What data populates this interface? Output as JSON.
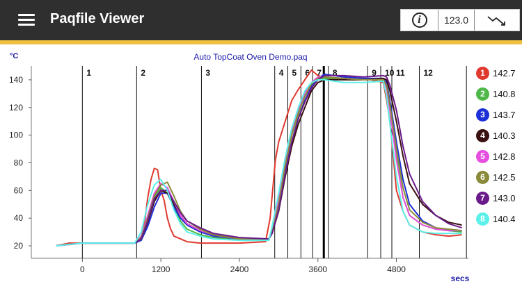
{
  "app": {
    "title": "Paqfile Viewer"
  },
  "toolbar": {
    "info_icon_glyph": "i",
    "value": "123.0"
  },
  "chart_data": {
    "type": "line",
    "title": "Auto TopCoat Oven Demo.paq",
    "ylabel": "°C",
    "xlabel": "secs",
    "xlim": [
      -780,
      5900
    ],
    "ylim": [
      15,
      150
    ],
    "yticks": [
      20,
      40,
      60,
      80,
      100,
      120,
      140
    ],
    "xticks": [
      0,
      1200,
      2400,
      3600,
      4800
    ],
    "zones": [
      {
        "label": "1",
        "x": 0
      },
      {
        "label": "2",
        "x": 830
      },
      {
        "label": "3",
        "x": 1820
      },
      {
        "label": "4",
        "x": 2940
      },
      {
        "label": "5",
        "x": 3140
      },
      {
        "label": "6",
        "x": 3340
      },
      {
        "label": "7",
        "x": 3520
      },
      {
        "label": "8",
        "x": 3760
      },
      {
        "label": "9",
        "x": 4360
      },
      {
        "label": "10",
        "x": 4560
      },
      {
        "label": "11",
        "x": 4730
      },
      {
        "label": "12",
        "x": 5150
      },
      {
        "label": "",
        "x": 5870
      }
    ],
    "marker_x": 3690,
    "series": [
      {
        "name": "1",
        "color": "#e03a2f",
        "current": "142.7",
        "x": [
          -400,
          -200,
          0,
          400,
          800,
          900,
          950,
          1000,
          1050,
          1100,
          1150,
          1200,
          1250,
          1300,
          1350,
          1400,
          1500,
          1600,
          1800,
          2000,
          2400,
          2800,
          2870,
          2950,
          3000,
          3100,
          3200,
          3300,
          3400,
          3500,
          3600,
          3700,
          3800,
          4000,
          4200,
          4400,
          4600,
          4650,
          4700,
          4800,
          4900,
          5000,
          5200,
          5400,
          5600,
          5800
        ],
        "values": [
          20,
          22,
          22,
          22,
          22,
          24,
          36,
          55,
          68,
          76,
          75,
          60,
          53,
          40,
          32,
          27,
          25,
          23,
          22,
          22,
          22,
          23,
          40,
          82,
          95,
          110,
          125,
          133,
          140,
          147,
          143,
          141,
          141,
          140,
          140,
          140,
          138,
          125,
          110,
          60,
          45,
          35,
          30,
          28,
          27,
          28
        ]
      },
      {
        "name": "2",
        "color": "#4db848",
        "current": "140.8",
        "x": [
          -400,
          0,
          800,
          900,
          1000,
          1100,
          1200,
          1300,
          1400,
          1500,
          1600,
          1800,
          2000,
          2400,
          2850,
          2900,
          3000,
          3100,
          3200,
          3300,
          3400,
          3500,
          3600,
          3700,
          4000,
          4300,
          4600,
          4650,
          4700,
          4800,
          4900,
          5000,
          5200,
          5400,
          5600,
          5800
        ],
        "values": [
          20,
          22,
          22,
          27,
          40,
          55,
          62,
          58,
          48,
          38,
          32,
          28,
          26,
          24,
          24,
          33,
          55,
          80,
          100,
          115,
          128,
          136,
          140,
          141,
          140,
          140,
          140,
          135,
          120,
          85,
          55,
          42,
          35,
          32,
          31,
          30
        ]
      },
      {
        "name": "3",
        "color": "#1d2fd6",
        "current": "143.7",
        "x": [
          -400,
          0,
          800,
          900,
          1000,
          1100,
          1200,
          1300,
          1400,
          1500,
          1600,
          1800,
          2000,
          2400,
          2850,
          2900,
          3000,
          3100,
          3200,
          3300,
          3400,
          3500,
          3600,
          3700,
          4000,
          4300,
          4600,
          4650,
          4700,
          4800,
          4900,
          5000,
          5200,
          5400,
          5600,
          5800
        ],
        "values": [
          20,
          22,
          22,
          24,
          34,
          48,
          58,
          58,
          48,
          40,
          35,
          30,
          27,
          25,
          25,
          30,
          50,
          75,
          95,
          112,
          125,
          135,
          141,
          144,
          142,
          141,
          141,
          138,
          125,
          95,
          68,
          50,
          38,
          33,
          31,
          31
        ]
      },
      {
        "name": "4",
        "color": "#3a1010",
        "current": "140.3",
        "x": [
          -400,
          0,
          800,
          900,
          1000,
          1100,
          1200,
          1300,
          1400,
          1500,
          1600,
          1800,
          2000,
          2400,
          2850,
          2900,
          3000,
          3100,
          3200,
          3300,
          3400,
          3500,
          3600,
          3700,
          4000,
          4300,
          4600,
          4650,
          4700,
          4800,
          4900,
          5000,
          5200,
          5400,
          5600,
          5800
        ],
        "values": [
          20,
          22,
          22,
          25,
          37,
          52,
          60,
          58,
          50,
          42,
          36,
          31,
          28,
          25,
          25,
          29,
          45,
          70,
          92,
          108,
          120,
          132,
          138,
          140,
          140,
          140,
          141,
          140,
          132,
          110,
          85,
          65,
          50,
          42,
          37,
          35
        ]
      },
      {
        "name": "5",
        "color": "#e64ee0",
        "current": "142.8",
        "x": [
          -400,
          0,
          800,
          900,
          1000,
          1100,
          1200,
          1300,
          1400,
          1500,
          1600,
          1800,
          2000,
          2400,
          2850,
          2900,
          3000,
          3100,
          3200,
          3300,
          3400,
          3500,
          3600,
          3700,
          4000,
          4300,
          4600,
          4650,
          4700,
          4800,
          4900,
          5000,
          5200,
          5400,
          5600,
          5800
        ],
        "values": [
          20,
          22,
          22,
          27,
          42,
          58,
          65,
          62,
          52,
          42,
          36,
          31,
          28,
          25,
          25,
          32,
          54,
          80,
          102,
          118,
          130,
          138,
          142,
          142,
          141,
          140,
          140,
          134,
          118,
          82,
          55,
          42,
          35,
          32,
          31,
          31
        ]
      },
      {
        "name": "6",
        "color": "#8a8a3a",
        "current": "142.5",
        "x": [
          -400,
          0,
          800,
          900,
          1000,
          1100,
          1200,
          1300,
          1400,
          1500,
          1600,
          1800,
          2000,
          2400,
          2850,
          2900,
          3000,
          3100,
          3200,
          3300,
          3400,
          3500,
          3600,
          3700,
          4000,
          4300,
          4600,
          4650,
          4700,
          4800,
          4900,
          5000,
          5200,
          5400,
          5600,
          5800
        ],
        "values": [
          20,
          22,
          22,
          26,
          40,
          56,
          64,
          66,
          56,
          45,
          38,
          32,
          28,
          25,
          25,
          30,
          50,
          78,
          100,
          116,
          128,
          137,
          141,
          142,
          141,
          140,
          140,
          136,
          122,
          90,
          62,
          46,
          37,
          33,
          32,
          31
        ]
      },
      {
        "name": "7",
        "color": "#6a1a8a",
        "current": "143.0",
        "x": [
          -400,
          0,
          800,
          900,
          1000,
          1100,
          1200,
          1300,
          1400,
          1500,
          1600,
          1800,
          2000,
          2400,
          2850,
          2900,
          3000,
          3100,
          3200,
          3300,
          3400,
          3500,
          3600,
          3700,
          4000,
          4300,
          4600,
          4650,
          4700,
          4800,
          4900,
          5000,
          5200,
          5400,
          5600,
          5800
        ],
        "values": [
          20,
          22,
          22,
          25,
          38,
          54,
          60,
          60,
          52,
          44,
          38,
          33,
          29,
          26,
          25,
          29,
          46,
          72,
          95,
          112,
          124,
          134,
          140,
          143,
          143,
          142,
          143,
          142,
          136,
          118,
          92,
          72,
          52,
          42,
          36,
          33
        ]
      },
      {
        "name": "8",
        "color": "#5cf0ea",
        "current": "140.4",
        "x": [
          -400,
          0,
          800,
          900,
          1000,
          1100,
          1200,
          1300,
          1400,
          1500,
          1600,
          1800,
          2000,
          2400,
          2850,
          2900,
          3000,
          3100,
          3200,
          3300,
          3400,
          3500,
          3600,
          3700,
          4000,
          4300,
          4600,
          4650,
          4700,
          4800,
          4900,
          5000,
          5200,
          5400,
          5600,
          5800
        ],
        "values": [
          20,
          22,
          22,
          30,
          50,
          64,
          68,
          60,
          46,
          36,
          30,
          27,
          25,
          24,
          24,
          34,
          58,
          84,
          105,
          120,
          132,
          138,
          140,
          140,
          138,
          138,
          139,
          128,
          108,
          70,
          45,
          35,
          30,
          29,
          29,
          29
        ]
      }
    ]
  }
}
